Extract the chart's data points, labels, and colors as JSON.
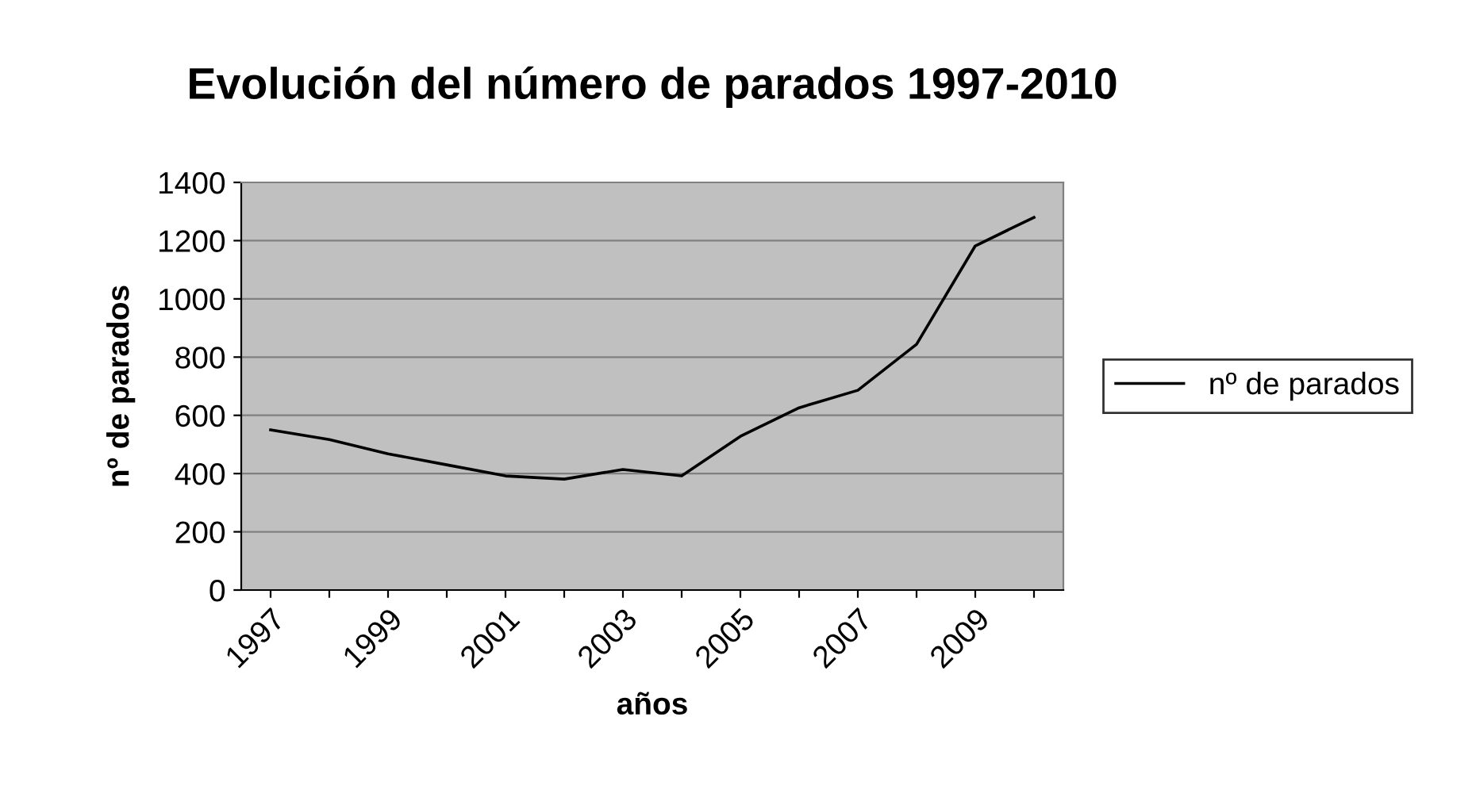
{
  "chart_data": {
    "type": "line",
    "title": "Evolución del número de parados 1997-2010",
    "xlabel": "años",
    "ylabel": "nº de parados",
    "categories": [
      "1997",
      null,
      "1999",
      null,
      "2001",
      null,
      "2003",
      null,
      "2005",
      null,
      "2007",
      null,
      "2009",
      null
    ],
    "series": [
      {
        "name": "nº de parados",
        "color": "#000000",
        "values": [
          550,
          517,
          468,
          430,
          392,
          381,
          414,
          392,
          528,
          626,
          686,
          844,
          1182,
          1280
        ]
      }
    ],
    "ylim": [
      0,
      1400
    ],
    "yticks": [
      0,
      200,
      400,
      600,
      800,
      1000,
      1200,
      1400
    ],
    "grid": "y",
    "legend": "right",
    "marker": "none",
    "line_style": "solid"
  }
}
